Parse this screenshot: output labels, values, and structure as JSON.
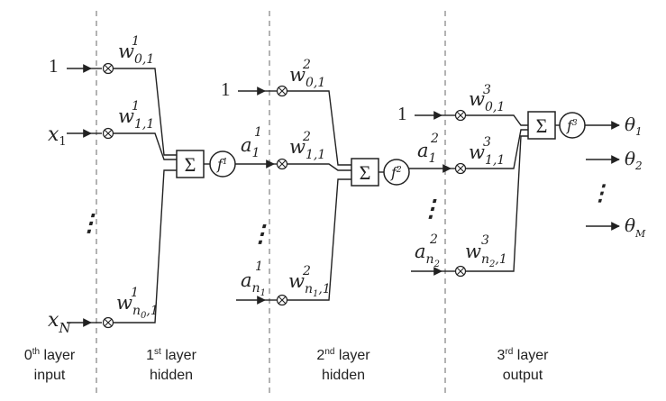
{
  "diagram": {
    "layers": [
      {
        "line1": "0",
        "sup": "th",
        "line1_rest": " layer",
        "line2": "input"
      },
      {
        "line1": "1",
        "sup": "st",
        "line1_rest": " layer",
        "line2": "hidden"
      },
      {
        "line1": "2",
        "sup": "nd",
        "line1_rest": " layer",
        "line2": "hidden"
      },
      {
        "line1": "3",
        "sup": "rd",
        "line1_rest": " layer",
        "line2": "output"
      }
    ],
    "inputs": {
      "bias": "1",
      "x1": {
        "base": "x",
        "sub": "1"
      },
      "xN": {
        "base": "x",
        "sub": "N"
      }
    },
    "layer1": {
      "bias": "1",
      "a1": {
        "base": "a",
        "sub": "1",
        "sup": "1"
      },
      "an": {
        "base": "a",
        "sub": "n",
        "subsub": "1",
        "sup": "1"
      },
      "weights": {
        "w01": {
          "base": "w",
          "sup": "1",
          "sub": "0,1"
        },
        "w11": {
          "base": "w",
          "sup": "1",
          "sub": "1,1"
        },
        "wn1": {
          "base": "w",
          "sup": "1",
          "sub": "n",
          "subsub": "0",
          "tail": ",1"
        }
      },
      "sum_symbol": "Σ",
      "activation": {
        "base": "f",
        "sup": "1"
      }
    },
    "layer2": {
      "bias": "1",
      "a1": {
        "base": "a",
        "sub": "1",
        "sup": "2"
      },
      "an": {
        "base": "a",
        "sub": "n",
        "subsub": "2",
        "sup": "2"
      },
      "weights": {
        "w01": {
          "base": "w",
          "sup": "2",
          "sub": "0,1"
        },
        "w11": {
          "base": "w",
          "sup": "2",
          "sub": "1,1"
        },
        "wn1": {
          "base": "w",
          "sup": "2",
          "sub": "n",
          "subsub": "1",
          "tail": ",1"
        }
      },
      "sum_symbol": "Σ",
      "activation": {
        "base": "f",
        "sup": "2"
      }
    },
    "layer3": {
      "weights": {
        "w01": {
          "base": "w",
          "sup": "3",
          "sub": "0,1"
        },
        "w11": {
          "base": "w",
          "sup": "3",
          "sub": "1,1"
        },
        "wn1": {
          "base": "w",
          "sup": "3",
          "sub": "n",
          "subsub": "2",
          "tail": ",1"
        }
      },
      "sum_symbol": "Σ",
      "activation": {
        "base": "f",
        "sup": "3"
      }
    },
    "outputs": {
      "theta1": {
        "base": "θ",
        "sub": "1"
      },
      "theta2": {
        "base": "θ",
        "sub": "2"
      },
      "thetaM": {
        "base": "θ",
        "sub": "M"
      }
    },
    "ellipsis": "⋮",
    "colors": {
      "line": "#222222",
      "dash": "#8a8a8a",
      "text": "#222222"
    }
  }
}
